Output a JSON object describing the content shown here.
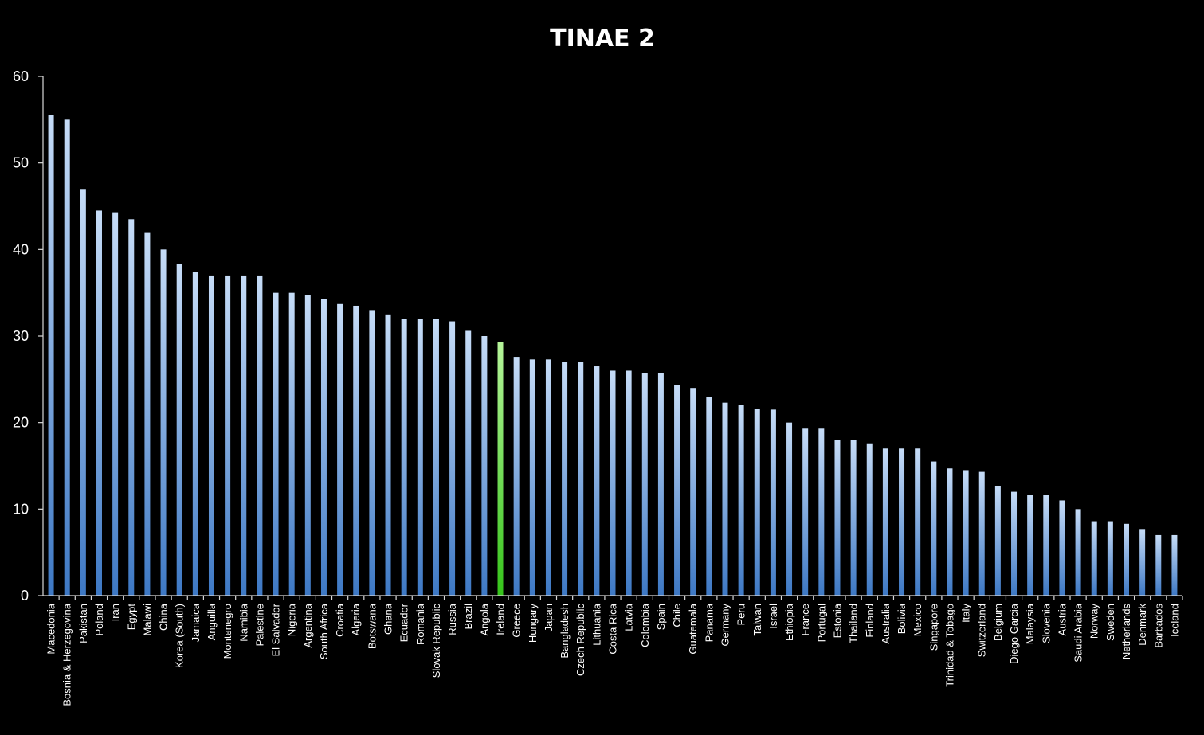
{
  "chart_data": {
    "type": "bar",
    "title": "TINAE 2",
    "xlabel": "",
    "ylabel": "",
    "ylim": [
      0,
      60
    ],
    "yticks": [
      0,
      10,
      20,
      30,
      40,
      50,
      60
    ],
    "grid": false,
    "legend": "none",
    "colors": {
      "bar_top": "#c6dcf7",
      "bar_bottom": "#3d78c4",
      "highlight_top": "#b6f59a",
      "highlight_bottom": "#35c41a",
      "highlight_category": "Ireland",
      "background": "#000000",
      "text": "#ffffff",
      "axis": "#d9d9d9"
    },
    "categories": [
      "Macedonia",
      "Bosnia & Herzegovina",
      "Pakistan",
      "Poland",
      "Iran",
      "Egypt",
      "Malawi",
      "China",
      "Korea (South)",
      "Jamaica",
      "Anguilla",
      "Montenegro",
      "Namibia",
      "Palestine",
      "El Salvador",
      "Nigeria",
      "Argentina",
      "South Africa",
      "Croatia",
      "Algeria",
      "Botswana",
      "Ghana",
      "Ecuador",
      "Romania",
      "Slovak Republic",
      "Russia",
      "Brazil",
      "Angola",
      "Ireland",
      "Greece",
      "Hungary",
      "Japan",
      "Bangladesh",
      "Czech Republic",
      "Lithuania",
      "Costa Rica",
      "Latvia",
      "Colombia",
      "Spain",
      "Chile",
      "Guatemala",
      "Panama",
      "Germany",
      "Peru",
      "Taiwan",
      "Israel",
      "Ethiopia",
      "France",
      "Portugal",
      "Estonia",
      "Thailand",
      "Finland",
      "Australia",
      "Bolivia",
      "Mexico",
      "Singapore",
      "Trinidad & Tobago",
      "Italy",
      "Switzerland",
      "Belgium",
      "Diego Garcia",
      "Malaysia",
      "Slovenia",
      "Austria",
      "Saudi Arabia",
      "Norway",
      "Sweden",
      "Netherlands",
      "Denmark",
      "Barbados",
      "Iceland"
    ],
    "values": [
      55.5,
      55,
      47,
      44.5,
      44.3,
      43.5,
      42,
      40,
      38.3,
      37.4,
      37,
      37,
      37,
      37,
      35,
      35,
      34.7,
      34.3,
      33.7,
      33.5,
      33,
      32.5,
      32,
      32,
      32,
      31.7,
      30.6,
      30,
      29.3,
      27.6,
      27.3,
      27.3,
      27,
      27,
      26.5,
      26,
      26,
      25.7,
      25.7,
      24.3,
      24,
      23,
      22.3,
      22,
      21.6,
      21.5,
      20,
      19.3,
      19.3,
      18,
      18,
      17.6,
      17,
      17,
      17,
      15.5,
      14.7,
      14.5,
      14.3,
      12.7,
      12,
      11.6,
      11.6,
      11,
      10,
      8.6,
      8.6,
      8.3,
      7.7,
      7,
      7
    ]
  }
}
